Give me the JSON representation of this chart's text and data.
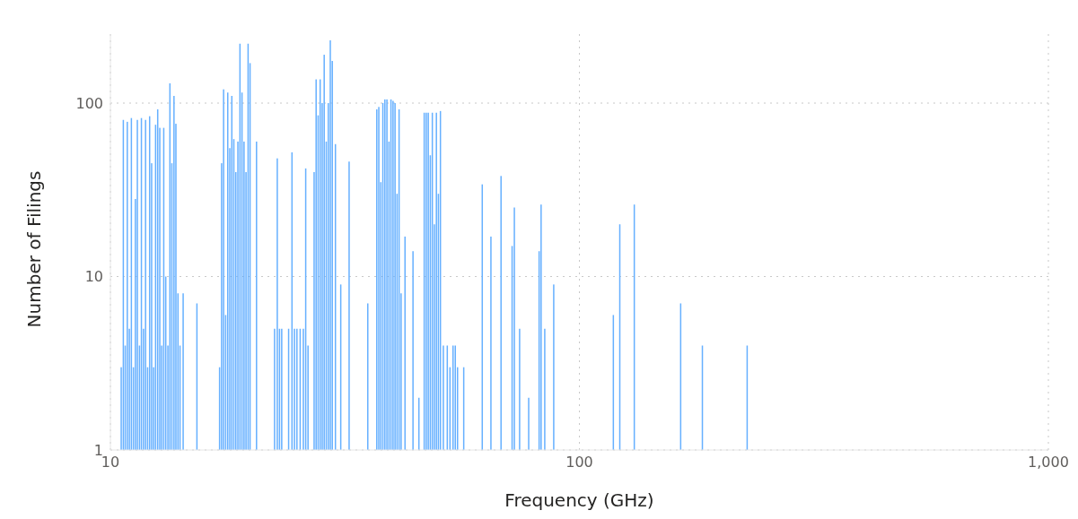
{
  "chart_data": {
    "type": "bar",
    "xlabel": "Frequency (GHz)",
    "ylabel": "Number of Filings",
    "x": [
      10.55,
      10.66,
      10.76,
      10.87,
      10.98,
      11.09,
      11.2,
      11.31,
      11.42,
      11.54,
      11.65,
      11.77,
      11.89,
      12.01,
      12.13,
      12.25,
      12.37,
      12.49,
      12.62,
      12.75,
      12.87,
      13.0,
      13.13,
      13.27,
      13.4,
      13.53,
      13.67,
      13.8,
      13.94,
      14.08,
      14.3,
      15.3,
      17.1,
      17.27,
      17.44,
      17.62,
      17.8,
      17.98,
      18.16,
      18.34,
      18.52,
      18.71,
      18.9,
      19.09,
      19.28,
      19.47,
      19.67,
      19.86,
      20.5,
      22.4,
      22.7,
      22.95,
      23.2,
      24.0,
      24.4,
      24.7,
      25.0,
      25.4,
      25.8,
      26.1,
      26.4,
      27.2,
      27.47,
      27.74,
      28.02,
      28.3,
      28.58,
      28.87,
      29.16,
      29.45,
      29.74,
      30.2,
      31.0,
      32.3,
      35.4,
      37.0,
      37.37,
      37.74,
      38.12,
      38.5,
      38.89,
      39.28,
      39.67,
      40.07,
      40.47,
      40.87,
      41.28,
      41.69,
      42.5,
      44.2,
      45.5,
      46.7,
      47.17,
      47.64,
      48.12,
      48.6,
      49.09,
      49.58,
      50.07,
      50.57,
      51.3,
      52.3,
      53.0,
      53.8,
      54.4,
      55.0,
      56.7,
      62.1,
      64.8,
      68.1,
      71.9,
      72.7,
      74.6,
      78.0,
      82.1,
      82.9,
      84.4,
      88.2,
      118.2,
      122,
      131,
      164.5,
      183,
      228
    ],
    "values": [
      3,
      80,
      4,
      78,
      5,
      82,
      3,
      28,
      80,
      4,
      82,
      5,
      80,
      3,
      84,
      45,
      3,
      75,
      92,
      72,
      4,
      72,
      10,
      4,
      130,
      45,
      110,
      76,
      8,
      4,
      8,
      7,
      3,
      45,
      120,
      6,
      115,
      55,
      110,
      62,
      40,
      60,
      220,
      115,
      60,
      40,
      220,
      170,
      60,
      5,
      48,
      5,
      5,
      5,
      52,
      5,
      5,
      5,
      5,
      42,
      4,
      40,
      137,
      85,
      137,
      100,
      190,
      60,
      100,
      230,
      175,
      58,
      9,
      46,
      7,
      92,
      95,
      35,
      100,
      105,
      105,
      60,
      105,
      103,
      100,
      30,
      92,
      8,
      17,
      14,
      2,
      88,
      88,
      88,
      50,
      88,
      20,
      88,
      30,
      90,
      4,
      4,
      3,
      4,
      4,
      3,
      3,
      34,
      17,
      38,
      15,
      25,
      5,
      2,
      14,
      26,
      5,
      9,
      6,
      20,
      26,
      7,
      4,
      4
    ],
    "color": "#66b0ff",
    "xlim": [
      10,
      1000
    ],
    "xticks": [
      10,
      100,
      {
        "value": 1000,
        "label": "1,000"
      }
    ],
    "ylim": [
      1,
      250
    ],
    "yticks": [
      1,
      10,
      100
    ],
    "log": "xy",
    "grid": true
  }
}
